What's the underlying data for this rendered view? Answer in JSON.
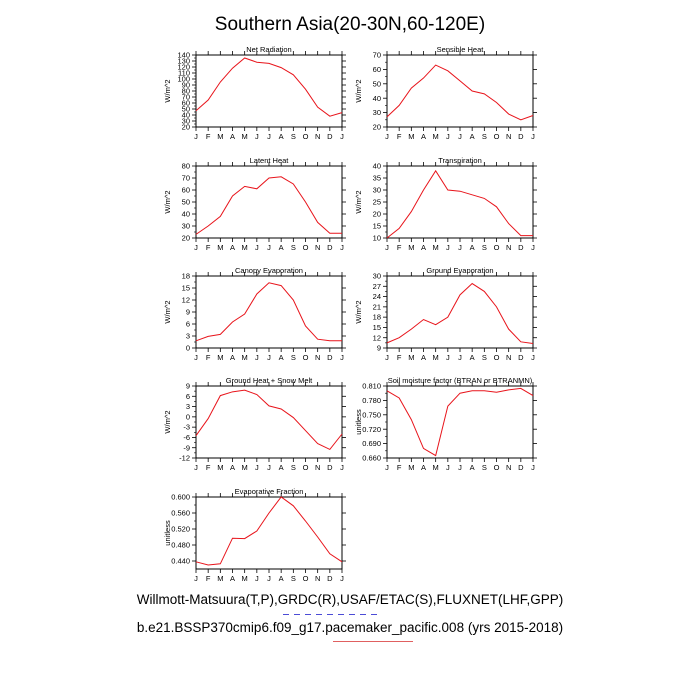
{
  "title": "Southern Asia(20-30N,60-120E)",
  "footer": {
    "line1": "Willmott-Matsuura(T,P),GRDC(R),USAF/ETAC(S),FLUXNET(LHF,GPP)",
    "line2": "b.e21.BSSP370cmip6.f09_g17.pacemaker_pacific.008 (yrs 2015-2018)"
  },
  "colors": {
    "series": "#e8141b",
    "axis": "#000000",
    "dash_blue": "#4b4bd6",
    "dash_red": "#e06060"
  },
  "chart_data": [
    {
      "type": "line",
      "title": "Net Radiation",
      "ylabel": "W/m^2",
      "categories": [
        "J",
        "F",
        "M",
        "A",
        "M",
        "J",
        "J",
        "A",
        "S",
        "O",
        "N",
        "D",
        "J"
      ],
      "ylim": [
        20,
        140
      ],
      "yticks": [
        20,
        30,
        40,
        50,
        60,
        70,
        80,
        90,
        100,
        110,
        120,
        130,
        140
      ],
      "ytick_labels": [
        "20",
        "30",
        "40",
        "50",
        "60",
        "70",
        "80",
        "90",
        "100",
        "110",
        "120",
        "130",
        "140"
      ],
      "values": [
        47,
        65,
        95,
        118,
        135,
        128,
        126,
        119,
        107,
        83,
        53,
        38,
        44
      ]
    },
    {
      "type": "line",
      "title": "Sensible Heat",
      "ylabel": "W/m^2",
      "categories": [
        "J",
        "F",
        "M",
        "A",
        "M",
        "J",
        "J",
        "A",
        "S",
        "O",
        "N",
        "D",
        "J"
      ],
      "ylim": [
        20,
        70
      ],
      "yticks": [
        20,
        30,
        40,
        50,
        60,
        70
      ],
      "ytick_labels": [
        "20",
        "30",
        "40",
        "50",
        "60",
        "70"
      ],
      "values": [
        27,
        35,
        47,
        54,
        63,
        59,
        52,
        45,
        43,
        37,
        29,
        25,
        28
      ]
    },
    {
      "type": "line",
      "title": "Latent Heat",
      "ylabel": "W/m^2",
      "categories": [
        "J",
        "F",
        "M",
        "A",
        "M",
        "J",
        "J",
        "A",
        "S",
        "O",
        "N",
        "D",
        "J"
      ],
      "ylim": [
        20,
        80
      ],
      "yticks": [
        20,
        30,
        40,
        50,
        60,
        70,
        80
      ],
      "ytick_labels": [
        "20",
        "30",
        "40",
        "50",
        "60",
        "70",
        "80"
      ],
      "values": [
        23,
        30,
        38,
        55,
        63,
        61,
        70,
        71,
        65,
        50,
        33,
        24,
        24
      ]
    },
    {
      "type": "line",
      "title": "Transpiration",
      "ylabel": "W/m^2",
      "categories": [
        "J",
        "F",
        "M",
        "A",
        "M",
        "J",
        "J",
        "A",
        "S",
        "O",
        "N",
        "D",
        "J"
      ],
      "ylim": [
        10,
        40
      ],
      "yticks": [
        10,
        15,
        20,
        25,
        30,
        35,
        40
      ],
      "ytick_labels": [
        "10",
        "15",
        "20",
        "25",
        "30",
        "35",
        "40"
      ],
      "values": [
        10,
        14,
        21,
        30,
        38,
        30,
        29.5,
        28,
        26.5,
        23,
        16,
        11,
        11
      ]
    },
    {
      "type": "line",
      "title": "Canopy Evaporation",
      "ylabel": "W/m^2",
      "categories": [
        "J",
        "F",
        "M",
        "A",
        "M",
        "J",
        "J",
        "A",
        "S",
        "O",
        "N",
        "D",
        "J"
      ],
      "ylim": [
        0,
        18
      ],
      "yticks": [
        0,
        3,
        6,
        9,
        12,
        15,
        18
      ],
      "ytick_labels": [
        "0",
        "3",
        "6",
        "9",
        "12",
        "15",
        "18"
      ],
      "values": [
        1.8,
        2.9,
        3.4,
        6.5,
        8.5,
        13.5,
        16.3,
        15.6,
        12,
        5.5,
        2.2,
        1.8,
        1.8
      ]
    },
    {
      "type": "line",
      "title": "Ground Evaporation",
      "ylabel": "W/m^2",
      "categories": [
        "J",
        "F",
        "M",
        "A",
        "M",
        "J",
        "J",
        "A",
        "S",
        "O",
        "N",
        "D",
        "J"
      ],
      "ylim": [
        9,
        30
      ],
      "yticks": [
        9,
        12,
        15,
        18,
        21,
        24,
        27,
        30
      ],
      "ytick_labels": [
        "9",
        "12",
        "15",
        "18",
        "21",
        "24",
        "27",
        "30"
      ],
      "values": [
        10.5,
        12,
        14.5,
        17.3,
        15.8,
        18,
        24.5,
        27.8,
        25.5,
        21,
        14.5,
        10.8,
        10.3
      ]
    },
    {
      "type": "line",
      "title": "Ground Heat + Snow Melt",
      "ylabel": "W/m^2",
      "categories": [
        "J",
        "F",
        "M",
        "A",
        "M",
        "J",
        "J",
        "A",
        "S",
        "O",
        "N",
        "D",
        "J"
      ],
      "ylim": [
        -12,
        9
      ],
      "yticks": [
        -12,
        -9,
        -6,
        -3,
        0,
        3,
        6,
        9
      ],
      "ytick_labels": [
        "-12",
        "-9",
        "-6",
        "-3",
        "0",
        "3",
        "6",
        "9"
      ],
      "values": [
        -5.5,
        -0.5,
        6.2,
        7.3,
        7.8,
        6.5,
        3.2,
        2.3,
        -0.2,
        -4,
        -7.8,
        -9.5,
        -5
      ]
    },
    {
      "type": "line",
      "title": "Soil moisture factor (BTRAN or BTRANMN)",
      "ylabel": "unitless",
      "categories": [
        "J",
        "F",
        "M",
        "A",
        "M",
        "J",
        "J",
        "A",
        "S",
        "O",
        "N",
        "D",
        "J"
      ],
      "ylim": [
        0.66,
        0.81
      ],
      "yticks": [
        0.66,
        0.69,
        0.72,
        0.75,
        0.78,
        0.81
      ],
      "ytick_labels": [
        "0.660",
        "0.690",
        "0.720",
        "0.750",
        "0.780",
        "0.810"
      ],
      "values": [
        0.8,
        0.785,
        0.74,
        0.68,
        0.665,
        0.768,
        0.795,
        0.8,
        0.8,
        0.797,
        0.802,
        0.805,
        0.79
      ]
    },
    {
      "type": "line",
      "title": "Evaporative Fraction",
      "ylabel": "unitless",
      "categories": [
        "J",
        "F",
        "M",
        "A",
        "M",
        "J",
        "J",
        "A",
        "S",
        "O",
        "N",
        "D",
        "J"
      ],
      "ylim": [
        0.42,
        0.6
      ],
      "yticks": [
        0.44,
        0.48,
        0.52,
        0.56,
        0.6
      ],
      "ytick_labels": [
        "0.440",
        "0.480",
        "0.520",
        "0.560",
        "0.600"
      ],
      "values": [
        0.438,
        0.43,
        0.433,
        0.497,
        0.496,
        0.515,
        0.56,
        0.6,
        0.578,
        0.54,
        0.5,
        0.458,
        0.438
      ]
    }
  ]
}
